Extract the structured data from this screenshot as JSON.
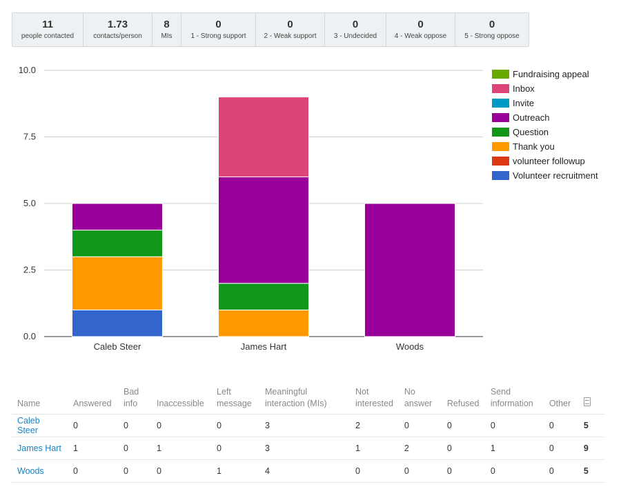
{
  "stats": [
    {
      "value": "11",
      "label": "people contacted"
    },
    {
      "value": "1.73",
      "label": "contacts/person"
    },
    {
      "value": "8",
      "label": "MIs"
    },
    {
      "value": "0",
      "label": "1 - Strong support"
    },
    {
      "value": "0",
      "label": "2 - Weak support"
    },
    {
      "value": "0",
      "label": "3 - Undecided"
    },
    {
      "value": "0",
      "label": "4 - Weak oppose"
    },
    {
      "value": "0",
      "label": "5 - Strong oppose"
    }
  ],
  "chart_data": {
    "type": "bar",
    "stacked": true,
    "categories": [
      "Caleb Steer",
      "James Hart",
      "Woods"
    ],
    "ylim": [
      0,
      10
    ],
    "yticks": [
      "0.0",
      "2.5",
      "5.0",
      "7.5",
      "10.0"
    ],
    "grid": true,
    "legend_position": "right",
    "series": [
      {
        "name": "Volunteer recruitment",
        "color": "#3366cc",
        "values": [
          1,
          0,
          0
        ]
      },
      {
        "name": "volunteer followup",
        "color": "#dc3912",
        "values": [
          0,
          0,
          0
        ]
      },
      {
        "name": "Thank you",
        "color": "#ff9900",
        "values": [
          2,
          1,
          0
        ]
      },
      {
        "name": "Question",
        "color": "#109618",
        "values": [
          1,
          1,
          0
        ]
      },
      {
        "name": "Outreach",
        "color": "#990099",
        "values": [
          1,
          4,
          5
        ]
      },
      {
        "name": "Invite",
        "color": "#0099c6",
        "values": [
          0,
          0,
          0
        ]
      },
      {
        "name": "Inbox",
        "color": "#dd4477",
        "values": [
          0,
          3,
          0
        ]
      },
      {
        "name": "Fundraising appeal",
        "color": "#66aa00",
        "values": [
          0,
          0,
          0
        ]
      }
    ]
  },
  "table": {
    "headers": [
      "Name",
      "Answered",
      "Bad info",
      "Inaccessible",
      "Left message",
      "Meaningful interaction (MIs)",
      "Not interested",
      "No answer",
      "Refused",
      "Send information",
      "Other"
    ],
    "rows": [
      {
        "name": "Caleb Steer",
        "cells": [
          "0",
          "0",
          "0",
          "0",
          "3",
          "2",
          "0",
          "0",
          "0",
          "0"
        ],
        "total": "5"
      },
      {
        "name": "James Hart",
        "cells": [
          "1",
          "0",
          "1",
          "0",
          "3",
          "1",
          "2",
          "0",
          "1",
          "0"
        ],
        "total": "9"
      },
      {
        "name": "Woods",
        "cells": [
          "0",
          "0",
          "0",
          "1",
          "4",
          "0",
          "0",
          "0",
          "0",
          "0"
        ],
        "total": "5"
      }
    ]
  }
}
